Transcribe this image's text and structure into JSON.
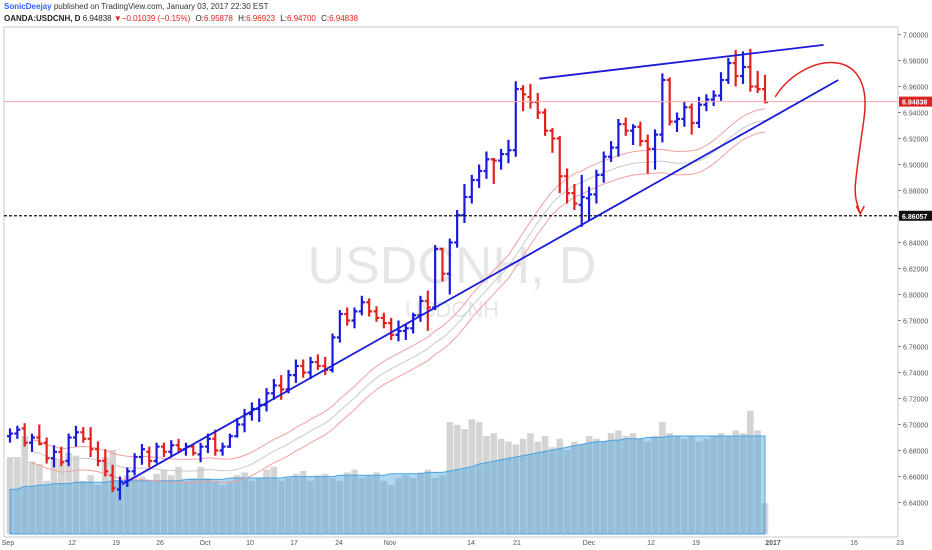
{
  "header": {
    "author": "SonicDeejay",
    "published_text": "published on TradingView.com, January 03, 2017 22:30 EST",
    "symbol": "OANDA:USDCNH, D",
    "last": "6.94838",
    "change": "−0.01039 (−0.15%)",
    "open_label": "O:",
    "open": "6.95878",
    "high_label": "H:",
    "high": "6.96923",
    "low_label": "L:",
    "low": "6.94700",
    "close_label": "C:",
    "close": "6.94838"
  },
  "watermark": {
    "main": "USDCNH, D",
    "sub": "USDCNH"
  },
  "colors": {
    "up": "#1a1adb",
    "down": "#e0221f",
    "trendline": "#1a1adb",
    "price_line": "#f5a8a8",
    "volume": "#b0b0b0",
    "volume_ma": "#4aa3df"
  },
  "chart_data": {
    "type": "bar",
    "subtype": "ohlc",
    "ylim": [
      6.63,
      7.005
    ],
    "x_ticks": [
      "Sep",
      "12",
      "19",
      "26",
      "Oct",
      "10",
      "17",
      "24",
      "Nov",
      "14",
      "21",
      "Dec",
      "12",
      "19",
      "2017",
      "16",
      "23"
    ],
    "y_ticks": [
      "7.00000",
      "6.98000",
      "6.96000",
      "6.94000",
      "6.92000",
      "6.90000",
      "6.88000",
      "6.86000",
      "6.84000",
      "6.82000",
      "6.80000",
      "6.78000",
      "6.76000",
      "6.74000",
      "6.72000",
      "6.70000",
      "6.68000",
      "6.66000",
      "6.64000"
    ],
    "last_price_label": "6.94838",
    "support_label": "6.86057",
    "support_level": 6.86057,
    "bars": [
      [
        6.691,
        6.697,
        6.686,
        6.693
      ],
      [
        6.693,
        6.699,
        6.689,
        6.696
      ],
      [
        6.697,
        6.701,
        6.683,
        6.686
      ],
      [
        6.686,
        6.693,
        6.679,
        6.69
      ],
      [
        6.69,
        6.7,
        6.684,
        6.685
      ],
      [
        6.686,
        6.69,
        6.67,
        6.674
      ],
      [
        6.674,
        6.684,
        6.667,
        6.679
      ],
      [
        6.679,
        6.683,
        6.668,
        6.671
      ],
      [
        6.672,
        6.693,
        6.668,
        6.69
      ],
      [
        6.69,
        6.699,
        6.683,
        6.694
      ],
      [
        6.694,
        6.698,
        6.686,
        6.689
      ],
      [
        6.689,
        6.698,
        6.675,
        6.681
      ],
      [
        6.681,
        6.687,
        6.668,
        6.672
      ],
      [
        6.672,
        6.681,
        6.66,
        6.664
      ],
      [
        6.661,
        6.669,
        6.648,
        6.651
      ],
      [
        6.65,
        6.66,
        6.642,
        6.656
      ],
      [
        6.656,
        6.667,
        6.652,
        6.664
      ],
      [
        6.664,
        6.678,
        6.661,
        6.675
      ],
      [
        6.675,
        6.685,
        6.669,
        6.681
      ],
      [
        6.679,
        6.683,
        6.667,
        6.672
      ],
      [
        6.672,
        6.686,
        6.67,
        6.683
      ],
      [
        6.683,
        6.686,
        6.675,
        6.679
      ],
      [
        6.679,
        6.688,
        6.676,
        6.684
      ],
      [
        6.684,
        6.689,
        6.678,
        6.681
      ],
      [
        6.681,
        6.686,
        6.676,
        6.683
      ],
      [
        6.683,
        6.685,
        6.676,
        6.678
      ],
      [
        6.677,
        6.686,
        6.671,
        6.683
      ],
      [
        6.683,
        6.693,
        6.678,
        6.689
      ],
      [
        6.689,
        6.696,
        6.676,
        6.68
      ],
      [
        6.68,
        6.686,
        6.676,
        6.683
      ],
      [
        6.683,
        6.693,
        6.682,
        6.691
      ],
      [
        6.691,
        6.705,
        6.69,
        6.7
      ],
      [
        6.7,
        6.712,
        6.694,
        6.708
      ],
      [
        6.708,
        6.717,
        6.703,
        6.712
      ],
      [
        6.712,
        6.72,
        6.702,
        6.715
      ],
      [
        6.715,
        6.728,
        6.71,
        6.724
      ],
      [
        6.724,
        6.735,
        6.719,
        6.73
      ],
      [
        6.73,
        6.738,
        6.719,
        6.727
      ],
      [
        6.727,
        6.742,
        6.724,
        6.738
      ],
      [
        6.738,
        6.75,
        6.732,
        6.745
      ],
      [
        6.745,
        6.75,
        6.736,
        6.74
      ],
      [
        6.74,
        6.752,
        6.735,
        6.748
      ],
      [
        6.748,
        6.754,
        6.742,
        6.745
      ],
      [
        6.745,
        6.752,
        6.738,
        6.742
      ],
      [
        6.742,
        6.77,
        6.74,
        6.767
      ],
      [
        6.767,
        6.788,
        6.763,
        6.785
      ],
      [
        6.785,
        6.79,
        6.776,
        6.78
      ],
      [
        6.78,
        6.79,
        6.774,
        6.787
      ],
      [
        6.787,
        6.799,
        6.784,
        6.794
      ],
      [
        6.794,
        6.797,
        6.783,
        6.787
      ],
      [
        6.787,
        6.791,
        6.779,
        6.782
      ],
      [
        6.782,
        6.786,
        6.774,
        6.778
      ],
      [
        6.778,
        6.782,
        6.765,
        6.769
      ],
      [
        6.769,
        6.78,
        6.764,
        6.772
      ],
      [
        6.772,
        6.777,
        6.765,
        6.774
      ],
      [
        6.774,
        6.786,
        6.77,
        6.784
      ],
      [
        6.784,
        6.799,
        6.779,
        6.795
      ],
      [
        6.795,
        6.803,
        6.772,
        6.79
      ],
      [
        6.79,
        6.838,
        6.788,
        6.835
      ],
      [
        6.835,
        6.836,
        6.81,
        6.816
      ],
      [
        6.816,
        6.843,
        6.8,
        6.84
      ],
      [
        6.84,
        6.865,
        6.836,
        6.861
      ],
      [
        6.861,
        6.885,
        6.855,
        6.875
      ],
      [
        6.875,
        6.892,
        6.87,
        6.888
      ],
      [
        6.888,
        6.9,
        6.882,
        6.895
      ],
      [
        6.895,
        6.91,
        6.889,
        6.904
      ],
      [
        6.904,
        6.905,
        6.885,
        6.903
      ],
      [
        6.903,
        6.912,
        6.896,
        6.908
      ],
      [
        6.908,
        6.919,
        6.901,
        6.911
      ],
      [
        6.911,
        6.964,
        6.906,
        6.958
      ],
      [
        6.958,
        6.961,
        6.941,
        6.954
      ],
      [
        6.952,
        6.962,
        6.943,
        6.948
      ],
      [
        6.948,
        6.955,
        6.935,
        6.94
      ],
      [
        6.94,
        6.943,
        6.922,
        6.926
      ],
      [
        6.926,
        6.928,
        6.909,
        6.92
      ],
      [
        6.92,
        6.922,
        6.878,
        6.891
      ],
      [
        6.891,
        6.897,
        6.87,
        6.878
      ],
      [
        6.878,
        6.885,
        6.865,
        6.87
      ],
      [
        6.869,
        6.892,
        6.852,
        6.875
      ],
      [
        6.874,
        6.883,
        6.857,
        6.877
      ],
      [
        6.877,
        6.896,
        6.87,
        6.892
      ],
      [
        6.892,
        6.91,
        6.886,
        6.906
      ],
      [
        6.906,
        6.918,
        6.902,
        6.913
      ],
      [
        6.913,
        6.935,
        6.906,
        6.931
      ],
      [
        6.931,
        6.936,
        6.922,
        6.926
      ],
      [
        6.926,
        6.931,
        6.915,
        6.929
      ],
      [
        6.929,
        6.933,
        6.914,
        6.918
      ],
      [
        6.918,
        6.923,
        6.893,
        6.912
      ],
      [
        6.912,
        6.927,
        6.896,
        6.923
      ],
      [
        6.923,
        6.97,
        6.917,
        6.965
      ],
      [
        6.965,
        6.967,
        6.93,
        6.933
      ],
      [
        6.933,
        6.94,
        6.925,
        6.935
      ],
      [
        6.935,
        6.948,
        6.929,
        6.944
      ],
      [
        6.944,
        6.947,
        6.923,
        6.932
      ],
      [
        6.932,
        6.952,
        6.928,
        6.946
      ],
      [
        6.946,
        6.954,
        6.941,
        6.95
      ],
      [
        6.95,
        6.957,
        6.945,
        6.953
      ],
      [
        6.953,
        6.971,
        6.949,
        6.965
      ],
      [
        6.965,
        6.982,
        6.962,
        6.978
      ],
      [
        6.978,
        6.988,
        6.96,
        6.968
      ],
      [
        6.968,
        6.987,
        6.962,
        6.975
      ],
      [
        6.975,
        6.989,
        6.956,
        6.96
      ],
      [
        6.96,
        6.972,
        6.955,
        6.958
      ],
      [
        6.958,
        6.969,
        6.947,
        6.948
      ]
    ],
    "volume": [
      55,
      55,
      70,
      52,
      50,
      38,
      54,
      53,
      58,
      56,
      38,
      42,
      35,
      55,
      60,
      38,
      42,
      42,
      41,
      38,
      43,
      46,
      42,
      48,
      38,
      40,
      48,
      40,
      38,
      35,
      38,
      42,
      44,
      38,
      40,
      46,
      48,
      38,
      40,
      43,
      45,
      38,
      42,
      43,
      40,
      38,
      44,
      46,
      40,
      42,
      44,
      38,
      35,
      40,
      42,
      40,
      44,
      46,
      40,
      42,
      80,
      78,
      75,
      82,
      80,
      70,
      72,
      68,
      66,
      64,
      68,
      72,
      66,
      70,
      62,
      68,
      60,
      66,
      64,
      70,
      68,
      66,
      72,
      74,
      70,
      72,
      68,
      66,
      70,
      80,
      72,
      70,
      68,
      70,
      66,
      68,
      70,
      72,
      70,
      74,
      72,
      88,
      74,
      22
    ],
    "volume_ma": [
      32,
      32,
      34,
      34,
      35,
      35,
      36,
      36,
      36,
      37,
      37,
      37,
      37,
      37,
      38,
      38,
      38,
      38,
      38,
      38,
      38,
      38,
      38,
      38,
      39,
      39,
      39,
      39,
      39,
      39,
      40,
      40,
      40,
      40,
      40,
      40,
      40,
      40,
      41,
      41,
      41,
      41,
      41,
      41,
      41,
      42,
      42,
      42,
      42,
      42,
      42,
      42,
      43,
      43,
      43,
      43,
      43,
      44,
      44,
      44,
      45,
      46,
      47,
      48,
      50,
      51,
      52,
      53,
      54,
      55,
      56,
      57,
      58,
      59,
      60,
      61,
      62,
      63,
      64,
      65,
      66,
      66,
      67,
      67,
      68,
      68,
      68,
      69,
      69,
      69,
      70,
      70,
      70,
      70,
      70,
      70,
      70,
      70,
      70,
      70,
      70,
      70,
      70,
      70
    ]
  }
}
